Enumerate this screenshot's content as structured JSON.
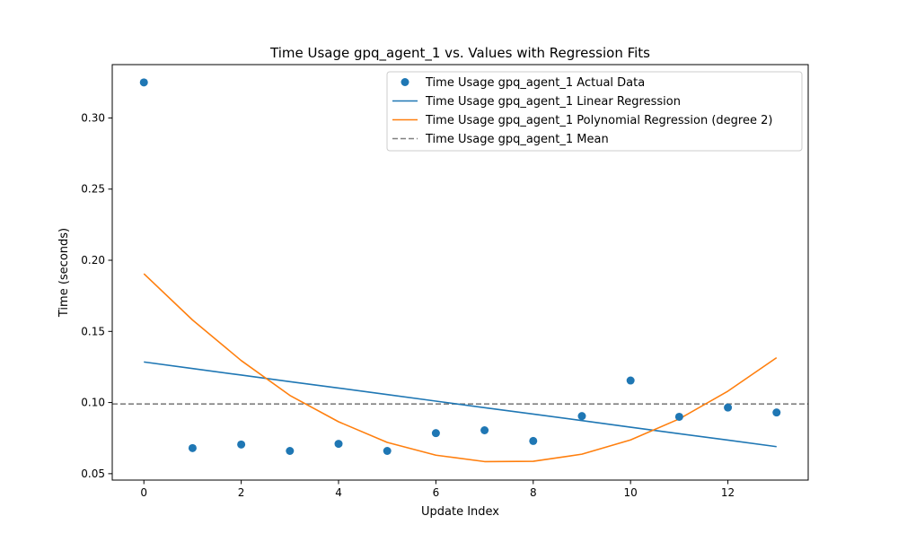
{
  "chart_data": {
    "type": "scatter",
    "title": "Time Usage gpq_agent_1 vs. Values with Regression Fits",
    "xlabel": "Update Index",
    "ylabel": "Time (seconds)",
    "xlim": [
      -0.65,
      13.65
    ],
    "ylim": [
      0.0455,
      0.3375
    ],
    "x_ticks": [
      0,
      2,
      4,
      6,
      8,
      10,
      12
    ],
    "x_tick_labels": [
      "0",
      "2",
      "4",
      "6",
      "8",
      "10",
      "12"
    ],
    "y_ticks": [
      0.05,
      0.1,
      0.15,
      0.2,
      0.25,
      0.3
    ],
    "y_tick_labels": [
      "0.05",
      "0.10",
      "0.15",
      "0.20",
      "0.25",
      "0.30"
    ],
    "grid": false,
    "legend_position": "top-right",
    "colors": {
      "actual": "#1f77b4",
      "linear": "#1f77b4",
      "poly": "#ff7f0e",
      "mean": "#808080"
    },
    "x": [
      0,
      1,
      2,
      3,
      4,
      5,
      6,
      7,
      8,
      9,
      10,
      11,
      12,
      13
    ],
    "series": [
      {
        "name": "Time Usage gpq_agent_1 Actual Data",
        "kind": "scatter",
        "values": [
          0.325,
          0.068,
          0.0705,
          0.066,
          0.071,
          0.066,
          0.0785,
          0.0805,
          0.073,
          0.0905,
          0.1155,
          0.09,
          0.0965,
          0.093
        ]
      },
      {
        "name": "Time Usage gpq_agent_1 Linear Regression",
        "kind": "line",
        "values": [
          0.1285,
          0.1239,
          0.1193,
          0.1147,
          0.1102,
          0.1056,
          0.101,
          0.0964,
          0.0919,
          0.0873,
          0.0827,
          0.0781,
          0.0736,
          0.069
        ]
      },
      {
        "name": "Time Usage gpq_agent_1 Polynomial Regression (degree 2)",
        "kind": "line",
        "values": [
          0.1905,
          0.158,
          0.1295,
          0.105,
          0.0865,
          0.072,
          0.063,
          0.0585,
          0.0587,
          0.0637,
          0.0737,
          0.0885,
          0.108,
          0.1315
        ]
      },
      {
        "name": "Time Usage gpq_agent_1 Mean",
        "kind": "hline",
        "value": 0.099
      }
    ]
  }
}
